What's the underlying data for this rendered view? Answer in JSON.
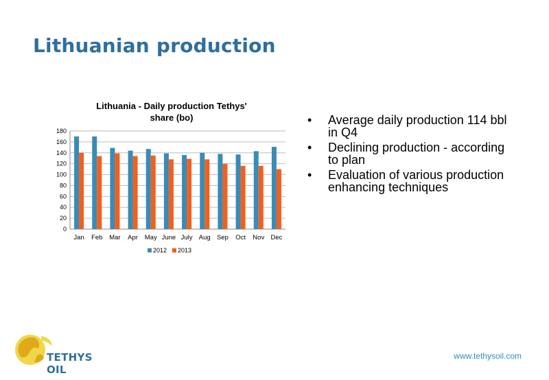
{
  "slide": {
    "title": "Lithuanian production",
    "bullets": [
      "Average daily production 114 bbl in Q4",
      "Declining production - according to plan",
      "Evaluation of various production enhancing techniques"
    ],
    "logo_text": "TETHYS OIL",
    "website": "www.tethysoil.com"
  },
  "colors": {
    "accent": "#2e6f9e",
    "series_2012": "#3a8bb6",
    "series_2013": "#f0601e"
  },
  "chart_data": {
    "type": "bar",
    "title_lines": [
      "Lithuania - Daily production Tethys'",
      "share (bo)"
    ],
    "categories": [
      "Jan",
      "Feb",
      "Mar",
      "Apr",
      "May",
      "June",
      "July",
      "Aug",
      "Sep",
      "Oct",
      "Nov",
      "Dec"
    ],
    "series": [
      {
        "name": "2012",
        "values": [
          170,
          170,
          149,
          144,
          147,
          139,
          136,
          140,
          138,
          137,
          143,
          151
        ]
      },
      {
        "name": "2013",
        "values": [
          140,
          134,
          139,
          134,
          135,
          128,
          129,
          128,
          120,
          116,
          116,
          110
        ]
      }
    ],
    "ylim": [
      0,
      180
    ],
    "yticks": [
      0,
      20,
      40,
      60,
      80,
      100,
      120,
      140,
      160,
      180
    ],
    "grid": true,
    "legend": "bottom"
  }
}
